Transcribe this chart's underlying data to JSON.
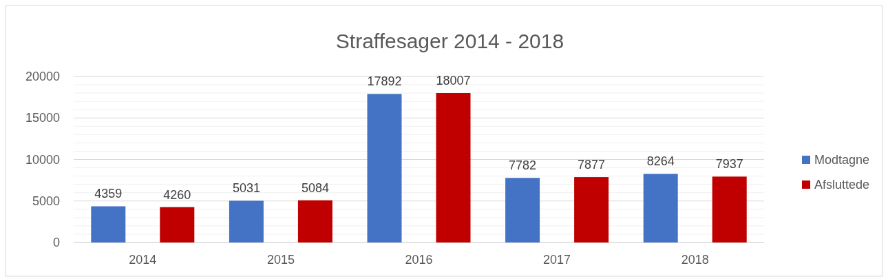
{
  "chart_data": {
    "type": "bar",
    "title": "Straffesager 2014 - 2018",
    "categories": [
      "2014",
      "2015",
      "2016",
      "2017",
      "2018"
    ],
    "series": [
      {
        "name": "Modtagne",
        "color": "#4472c4",
        "values": [
          4359,
          5031,
          17892,
          7782,
          8264
        ]
      },
      {
        "name": "Afsluttede",
        "color": "#c00000",
        "values": [
          4260,
          5084,
          18007,
          7877,
          7937
        ]
      }
    ],
    "ylim": [
      0,
      20000
    ],
    "yticks": [
      0,
      {
        "value": 1000,
        "label": null
      },
      {
        "value": 2000,
        "label": null
      },
      {
        "value": 3000,
        "label": null
      },
      {
        "value": 4000,
        "label": null
      },
      5000,
      {
        "value": 6000,
        "label": null
      },
      {
        "value": 7000,
        "label": null
      },
      {
        "value": 8000,
        "label": null
      },
      {
        "value": 9000,
        "label": null
      },
      10000,
      {
        "value": 11000,
        "label": null
      },
      {
        "value": 12000,
        "label": null
      },
      {
        "value": 13000,
        "label": null
      },
      {
        "value": 14000,
        "label": null
      },
      15000,
      {
        "value": 16000,
        "label": null
      },
      {
        "value": 17000,
        "label": null
      },
      {
        "value": 18000,
        "label": null
      },
      {
        "value": 19000,
        "label": null
      },
      20000
    ],
    "grid": true,
    "legend": "right",
    "data_labels": true
  }
}
